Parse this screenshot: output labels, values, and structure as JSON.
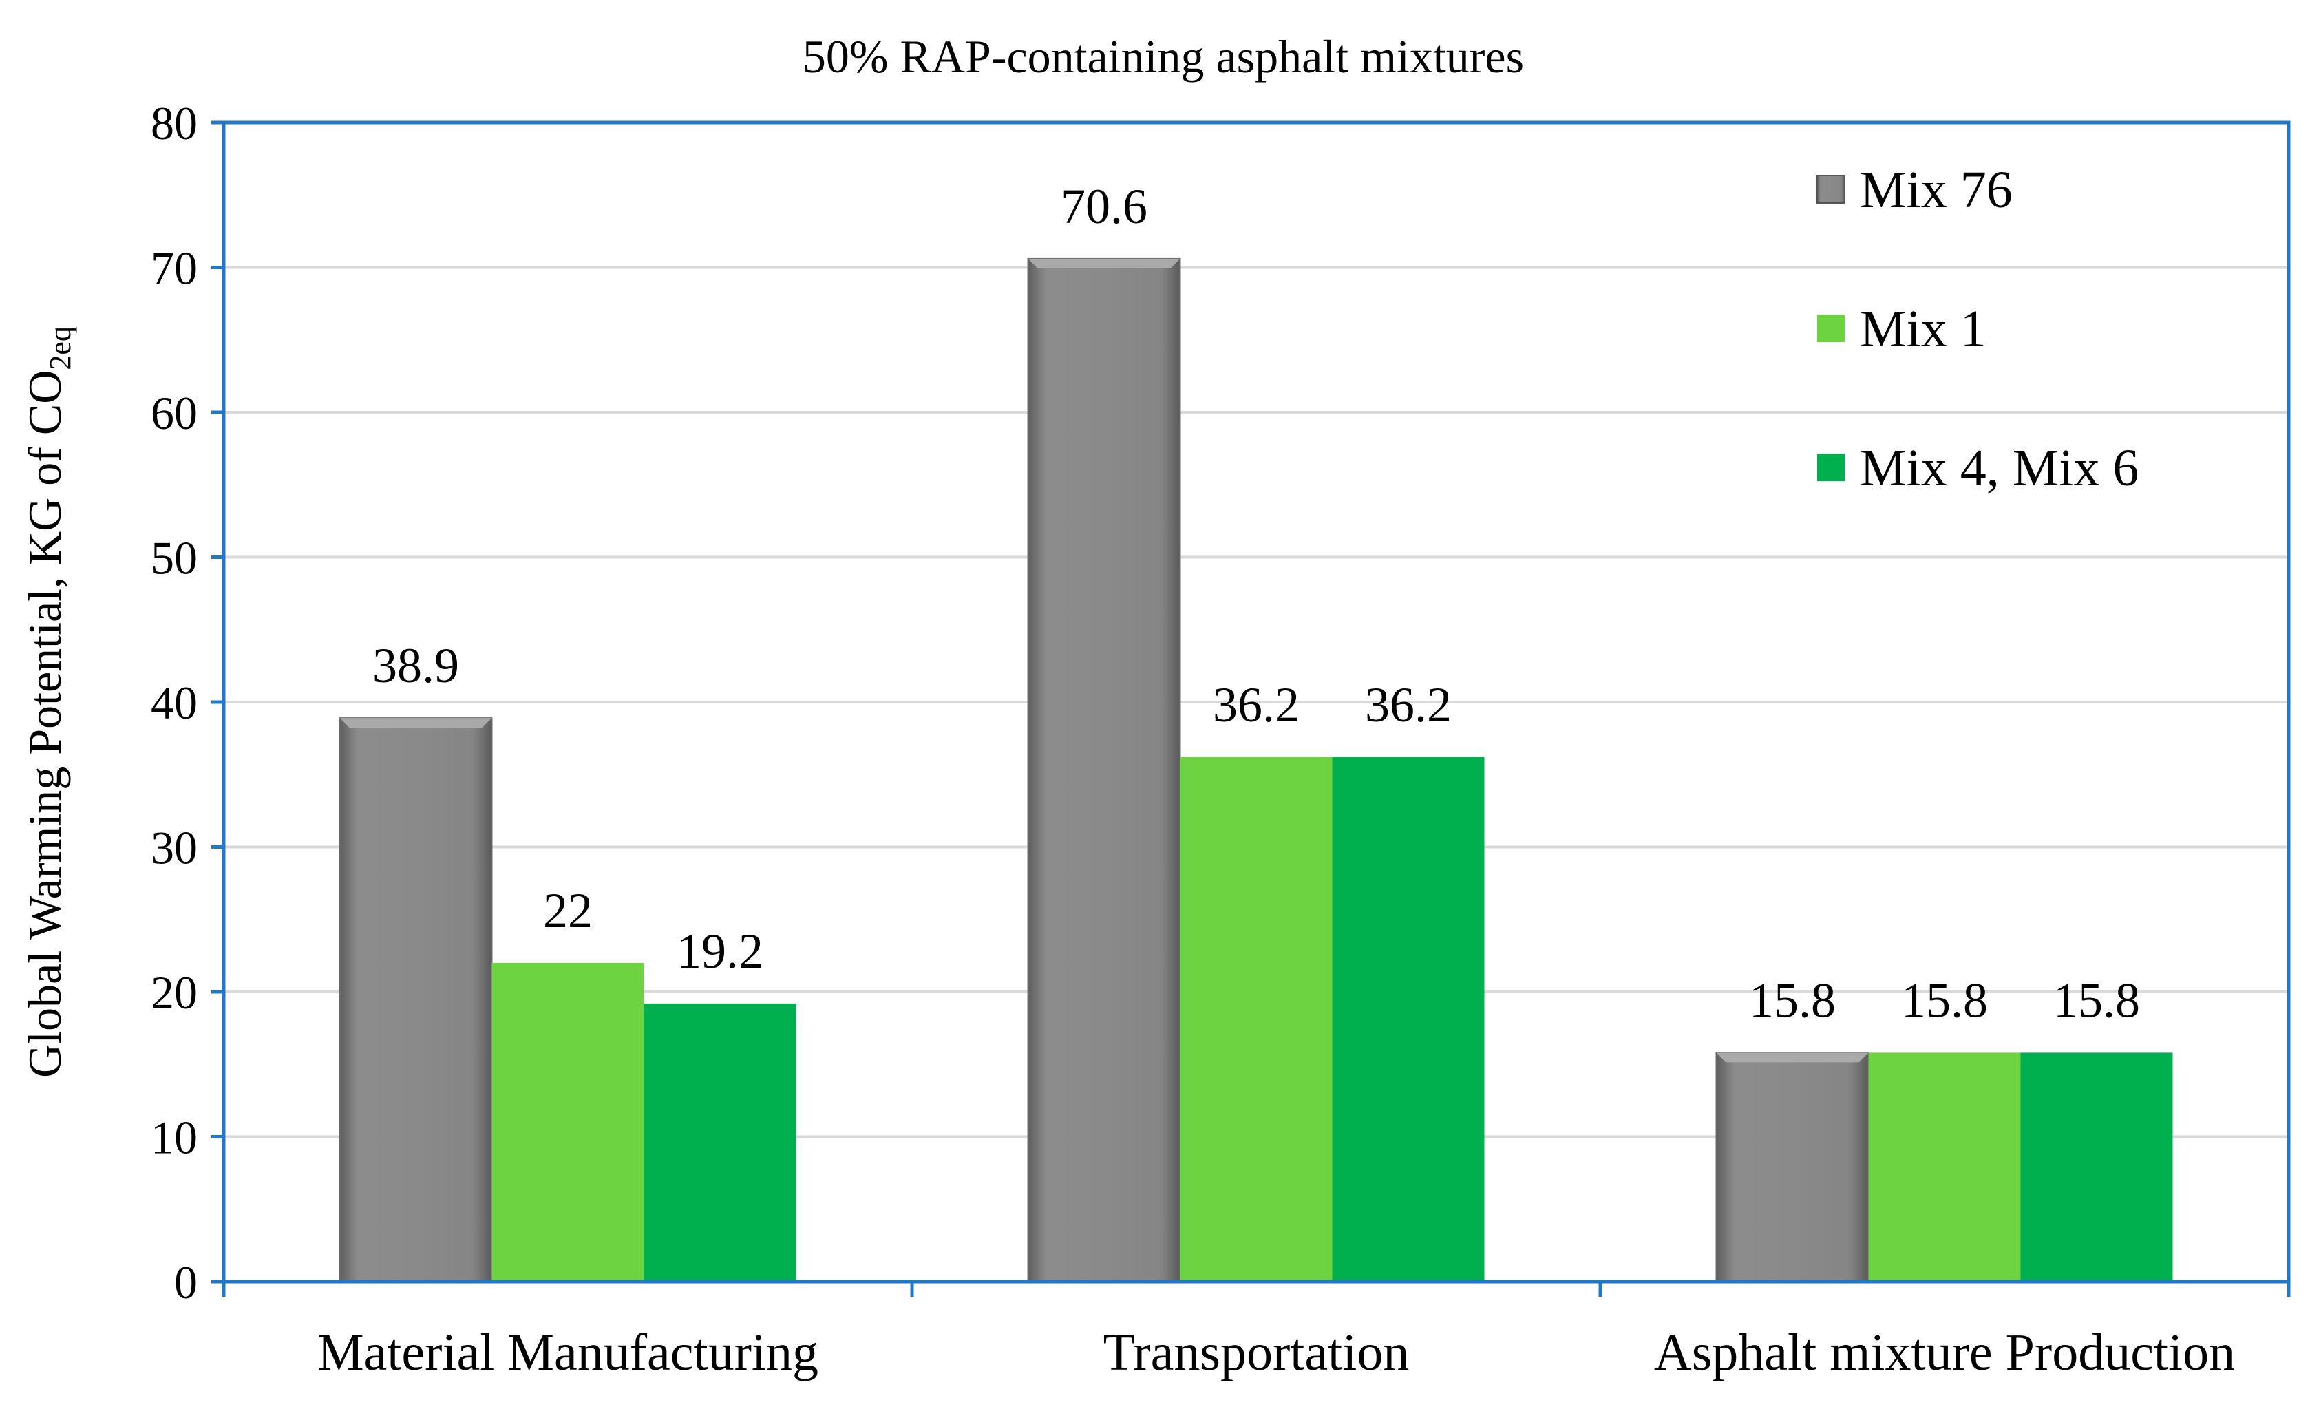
{
  "chart_data": {
    "type": "bar",
    "title": "50% RAP-containing  asphalt mixtures",
    "ylabel": {
      "main": "Global Warming Potential, KG of CO",
      "subscript": "2eq"
    },
    "xlabel": "",
    "ylim": [
      0,
      80
    ],
    "yticks": [
      0,
      10,
      20,
      30,
      40,
      50,
      60,
      70,
      80
    ],
    "grid": true,
    "legend_position": "top-right",
    "categories": [
      "Material Manufacturing",
      "Transportation",
      "Asphalt mixture Production"
    ],
    "series": [
      {
        "name": "Mix 76",
        "values": [
          38.9,
          70.6,
          15.8
        ],
        "labels": [
          "38.9",
          "70.6",
          "15.8"
        ],
        "color": "#7f7f7f"
      },
      {
        "name": "Mix 1",
        "values": [
          22,
          36.2,
          15.8
        ],
        "labels": [
          "22",
          "36.2",
          "15.8"
        ],
        "color": "#6dd341"
      },
      {
        "name": "Mix 4, Mix 6",
        "values": [
          19.2,
          36.2,
          15.8
        ],
        "labels": [
          "19.2",
          "36.2",
          "15.8"
        ],
        "color": "#00b04f"
      }
    ],
    "colors": {
      "axis": "#1f78c8",
      "grid": "#d9d9d9"
    }
  }
}
